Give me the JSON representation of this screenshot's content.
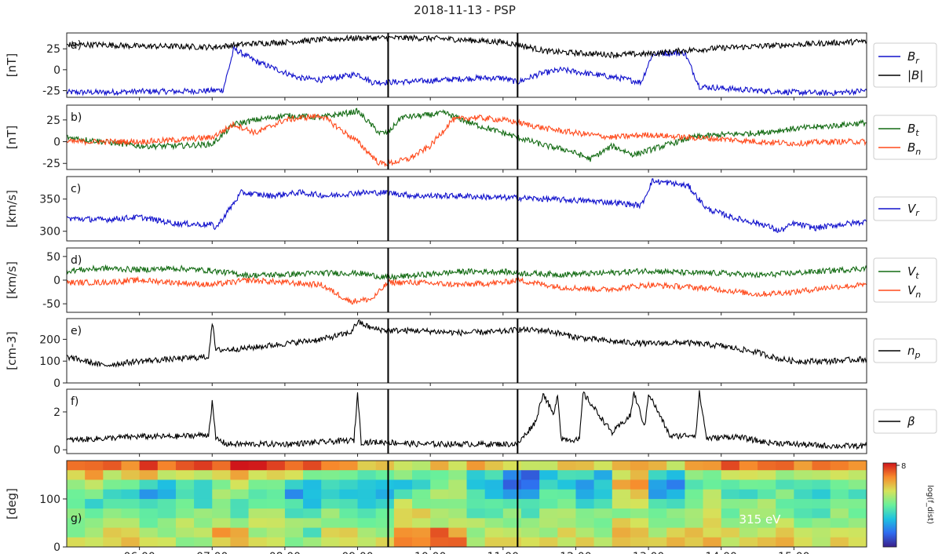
{
  "figure": {
    "title": "2018-11-13 - PSP",
    "x_ticks": [
      "06:00",
      "07:00",
      "08:00",
      "09:00",
      "10:00",
      "11:00",
      "12:00",
      "13:00",
      "14:00",
      "15:00"
    ],
    "x_tick_hours": [
      6,
      7,
      8,
      9,
      10,
      11,
      12,
      13,
      14,
      15
    ],
    "x_range_hours": [
      5.0,
      16.0
    ],
    "vertical_markers_hours": [
      9.42,
      11.2
    ]
  },
  "chart_data": [
    {
      "type": "line",
      "panel": "a)",
      "ylabel": "[nT]",
      "yticks": [
        25,
        0,
        -25
      ],
      "ylim": [
        -33,
        44
      ],
      "series": [
        {
          "name": "B_r",
          "color": "#1010cc",
          "x": [
            5.0,
            5.5,
            6.0,
            6.5,
            7.0,
            7.15,
            7.3,
            7.6,
            7.9,
            8.2,
            8.5,
            8.8,
            9.0,
            9.2,
            9.42,
            9.8,
            10.2,
            10.6,
            11.0,
            11.2,
            11.5,
            11.8,
            12.2,
            12.6,
            12.9,
            13.05,
            13.2,
            13.5,
            13.7,
            14.0,
            14.5,
            15.0,
            15.5,
            16.0
          ],
          "y": [
            -27,
            -27,
            -26,
            -26,
            -25,
            -24,
            25,
            10,
            0,
            -10,
            -12,
            -8,
            -5,
            -15,
            -15,
            -14,
            -12,
            -10,
            -10,
            -15,
            -5,
            0,
            -5,
            -10,
            -15,
            18,
            20,
            20,
            -20,
            -22,
            -25,
            -27,
            -28,
            -25
          ]
        },
        {
          "name": "|B|",
          "color": "#000000",
          "x": [
            5.0,
            5.5,
            6.0,
            6.5,
            7.0,
            7.15,
            7.5,
            8.0,
            8.5,
            9.0,
            9.42,
            9.8,
            10.2,
            10.6,
            11.0,
            11.2,
            11.6,
            12.0,
            12.5,
            13.0,
            13.5,
            14.0,
            14.5,
            15.0,
            15.5,
            16.0
          ],
          "y": [
            30,
            30,
            28,
            28,
            27,
            28,
            31,
            33,
            36,
            38,
            38,
            38,
            37,
            35,
            33,
            30,
            22,
            20,
            18,
            19,
            23,
            26,
            28,
            30,
            32,
            34
          ]
        }
      ]
    },
    {
      "type": "line",
      "panel": "b)",
      "ylabel": "[nT]",
      "yticks": [
        25,
        0,
        -25
      ],
      "ylim": [
        -32,
        42
      ],
      "series": [
        {
          "name": "B_t",
          "color": "#136b13",
          "x": [
            5.0,
            5.5,
            6.0,
            6.5,
            7.0,
            7.3,
            7.6,
            8.0,
            8.5,
            9.0,
            9.3,
            9.42,
            9.6,
            9.9,
            10.2,
            10.6,
            11.0,
            11.2,
            11.6,
            11.9,
            12.2,
            12.5,
            12.8,
            13.2,
            13.6,
            14.0,
            14.5,
            15.0,
            15.5,
            16.0
          ],
          "y": [
            5,
            0,
            -5,
            -5,
            -3,
            20,
            25,
            30,
            28,
            35,
            10,
            10,
            28,
            30,
            33,
            20,
            10,
            5,
            -5,
            -10,
            -20,
            -5,
            -15,
            -5,
            5,
            8,
            10,
            15,
            18,
            22
          ]
        },
        {
          "name": "B_n",
          "color": "#ff4a1c",
          "x": [
            5.0,
            5.5,
            6.0,
            6.5,
            7.0,
            7.3,
            7.6,
            8.0,
            8.5,
            9.0,
            9.3,
            9.42,
            9.7,
            10.0,
            10.3,
            10.6,
            11.0,
            11.2,
            11.6,
            12.0,
            12.5,
            13.0,
            13.5,
            14.0,
            14.5,
            15.0,
            15.5,
            16.0
          ],
          "y": [
            0,
            0,
            0,
            2,
            5,
            20,
            10,
            25,
            30,
            0,
            -25,
            -25,
            -20,
            -5,
            25,
            28,
            25,
            22,
            15,
            10,
            5,
            8,
            5,
            3,
            0,
            -2,
            0,
            0
          ]
        }
      ]
    },
    {
      "type": "line",
      "panel": "c)",
      "ylabel": "[km/s]",
      "yticks": [
        350,
        300
      ],
      "ylim": [
        285,
        385
      ],
      "series": [
        {
          "name": "V_r",
          "color": "#1010cc",
          "x": [
            5.0,
            5.5,
            6.0,
            6.5,
            7.0,
            7.05,
            7.4,
            7.8,
            8.2,
            8.6,
            9.0,
            9.42,
            9.8,
            10.4,
            11.0,
            11.2,
            11.6,
            12.0,
            12.5,
            12.9,
            13.05,
            13.3,
            13.55,
            13.8,
            14.2,
            14.6,
            14.8,
            15.0,
            15.3,
            15.6,
            16.0
          ],
          "y": [
            320,
            318,
            322,
            312,
            310,
            305,
            360,
            355,
            360,
            355,
            360,
            360,
            355,
            355,
            352,
            352,
            350,
            348,
            345,
            340,
            378,
            375,
            370,
            335,
            320,
            310,
            300,
            312,
            305,
            310,
            315
          ]
        }
      ]
    },
    {
      "type": "line",
      "panel": "d)",
      "ylabel": "[km/s]",
      "yticks": [
        50,
        0,
        -50
      ],
      "ylim": [
        -68,
        68
      ],
      "series": [
        {
          "name": "V_t",
          "color": "#136b13",
          "x": [
            5.0,
            5.5,
            6.0,
            6.5,
            7.0,
            7.5,
            8.0,
            8.5,
            9.0,
            9.42,
            9.8,
            10.4,
            11.0,
            11.2,
            11.8,
            12.4,
            13.0,
            13.6,
            14.0,
            14.5,
            15.0,
            15.5,
            16.0
          ],
          "y": [
            20,
            25,
            22,
            25,
            20,
            10,
            12,
            15,
            15,
            5,
            10,
            18,
            18,
            15,
            12,
            15,
            20,
            15,
            15,
            10,
            15,
            20,
            25
          ]
        },
        {
          "name": "V_n",
          "color": "#ff4a1c",
          "x": [
            5.0,
            5.5,
            6.0,
            6.5,
            7.0,
            7.5,
            8.0,
            8.5,
            8.9,
            9.2,
            9.42,
            9.8,
            10.4,
            11.0,
            11.2,
            11.8,
            12.4,
            13.0,
            13.6,
            14.0,
            14.5,
            15.0,
            15.5,
            16.0
          ],
          "y": [
            -5,
            -5,
            0,
            -5,
            -10,
            0,
            -5,
            -10,
            -45,
            -40,
            -5,
            -5,
            -10,
            -5,
            0,
            -15,
            -20,
            -10,
            -15,
            -20,
            -30,
            -25,
            -15,
            -10
          ]
        }
      ]
    },
    {
      "type": "line",
      "panel": "e)",
      "ylabel": "[cm-3]",
      "yticks": [
        200,
        100,
        0
      ],
      "ylim": [
        0,
        295
      ],
      "series": [
        {
          "name": "n_p",
          "color": "#000000",
          "x": [
            5.0,
            5.5,
            6.0,
            6.5,
            6.95,
            7.0,
            7.05,
            7.5,
            8.0,
            8.5,
            8.9,
            9.0,
            9.2,
            9.42,
            9.8,
            10.4,
            11.0,
            11.2,
            11.6,
            12.0,
            12.5,
            13.0,
            13.5,
            14.0,
            14.5,
            14.8,
            15.0,
            15.5,
            16.0
          ],
          "y": [
            120,
            80,
            100,
            110,
            120,
            280,
            150,
            160,
            180,
            200,
            230,
            280,
            250,
            240,
            240,
            230,
            235,
            245,
            240,
            210,
            190,
            180,
            185,
            170,
            140,
            110,
            100,
            100,
            110
          ]
        }
      ]
    },
    {
      "type": "line",
      "panel": "f)",
      "ylabel": "",
      "yticks": [
        2,
        0
      ],
      "ylim": [
        -0.2,
        3.2
      ],
      "series": [
        {
          "name": "β",
          "color": "#000000",
          "x": [
            5.0,
            5.5,
            6.0,
            6.5,
            6.95,
            7.0,
            7.05,
            7.2,
            7.5,
            8.0,
            8.5,
            8.95,
            9.0,
            9.05,
            9.2,
            9.42,
            9.8,
            10.4,
            11.0,
            11.2,
            11.45,
            11.55,
            11.7,
            11.75,
            11.8,
            12.05,
            12.1,
            12.5,
            12.75,
            12.8,
            12.95,
            13.0,
            13.3,
            13.65,
            13.7,
            13.8,
            14.2,
            14.6,
            15.0,
            15.5,
            16.0
          ],
          "y": [
            0.5,
            0.6,
            0.7,
            0.7,
            0.8,
            2.5,
            0.6,
            0.3,
            0.3,
            0.3,
            0.4,
            0.5,
            3.0,
            0.4,
            0.4,
            0.4,
            0.3,
            0.3,
            0.3,
            0.3,
            1.5,
            3.0,
            1.8,
            3.0,
            0.6,
            0.5,
            3.0,
            0.9,
            1.8,
            3.0,
            1.2,
            3.0,
            0.7,
            0.8,
            3.0,
            0.6,
            0.7,
            0.4,
            0.3,
            0.2,
            0.2
          ]
        }
      ]
    },
    {
      "type": "heatmap",
      "panel": "g)",
      "ylabel": "[deg]",
      "yticks": [
        100,
        0
      ],
      "ylim": [
        0,
        180
      ],
      "annotation": "315 eV",
      "colorbar": {
        "max_tick": "8",
        "label": "log(f_dist)",
        "colors": [
          "#3a1f8a",
          "#2f6cf0",
          "#1ec2e0",
          "#6af09a",
          "#d6e35a",
          "#f78a2c",
          "#d0151a"
        ]
      },
      "rows_pitch_angle": [
        168,
        150,
        130,
        110,
        90,
        70,
        50,
        30,
        10
      ],
      "columns_hour": [
        5.1,
        5.6,
        6.1,
        6.6,
        7.1,
        7.6,
        8.1,
        8.6,
        9.1,
        9.6,
        10.1,
        10.6,
        11.1,
        11.6,
        12.1,
        12.6,
        13.1,
        13.6,
        14.1,
        14.6,
        15.1,
        15.6
      ],
      "values": [
        [
          7.5,
          7.2,
          7.6,
          7.4,
          7.7,
          7.8,
          7.6,
          7.2,
          6.5,
          6.0,
          6.5,
          6.8,
          6.2,
          6.5,
          6.3,
          6.8,
          6.5,
          6.8,
          7.5,
          7.4,
          7.2,
          7.0
        ],
        [
          6.8,
          6.5,
          6.5,
          6.2,
          6.8,
          6.6,
          6.0,
          5.8,
          5.2,
          5.5,
          5.5,
          4.8,
          4.0,
          4.8,
          4.8,
          6.5,
          5.0,
          5.5,
          6.5,
          6.0,
          6.2,
          6.5
        ],
        [
          5.8,
          5.5,
          4.8,
          5.2,
          6.0,
          5.5,
          5.0,
          5.2,
          4.8,
          5.0,
          5.8,
          4.5,
          3.8,
          5.0,
          4.5,
          6.8,
          4.2,
          5.5,
          5.5,
          5.2,
          5.0,
          5.5
        ],
        [
          5.5,
          5.0,
          4.5,
          4.8,
          5.8,
          5.2,
          4.5,
          5.0,
          4.5,
          5.5,
          6.0,
          5.0,
          4.5,
          5.2,
          4.8,
          6.5,
          4.2,
          5.8,
          5.0,
          5.5,
          4.8,
          5.2
        ],
        [
          5.2,
          5.5,
          5.0,
          5.2,
          5.5,
          5.8,
          5.0,
          5.5,
          5.0,
          6.0,
          5.8,
          5.5,
          5.0,
          5.5,
          5.2,
          6.2,
          5.5,
          6.0,
          5.5,
          5.8,
          5.2,
          5.5
        ],
        [
          5.5,
          5.8,
          5.5,
          5.8,
          5.5,
          6.0,
          5.5,
          5.8,
          5.5,
          6.2,
          5.8,
          5.5,
          5.5,
          5.8,
          5.5,
          6.0,
          5.8,
          6.0,
          5.8,
          6.0,
          5.5,
          5.8
        ],
        [
          5.8,
          6.0,
          5.8,
          6.0,
          5.8,
          6.2,
          5.8,
          6.0,
          5.8,
          6.5,
          6.0,
          5.8,
          5.8,
          6.0,
          5.8,
          6.2,
          6.0,
          6.2,
          6.0,
          6.2,
          5.8,
          6.0
        ],
        [
          6.0,
          6.2,
          6.0,
          5.8,
          7.0,
          6.0,
          5.5,
          6.2,
          6.0,
          6.8,
          7.2,
          6.0,
          6.0,
          6.2,
          6.0,
          6.5,
          6.2,
          6.5,
          6.2,
          6.5,
          6.0,
          6.2
        ],
        [
          6.2,
          6.5,
          6.2,
          6.0,
          6.5,
          6.2,
          5.8,
          6.5,
          6.2,
          7.0,
          7.5,
          6.2,
          6.2,
          6.5,
          6.2,
          6.8,
          6.5,
          6.8,
          6.5,
          6.8,
          6.2,
          6.5
        ]
      ]
    }
  ]
}
